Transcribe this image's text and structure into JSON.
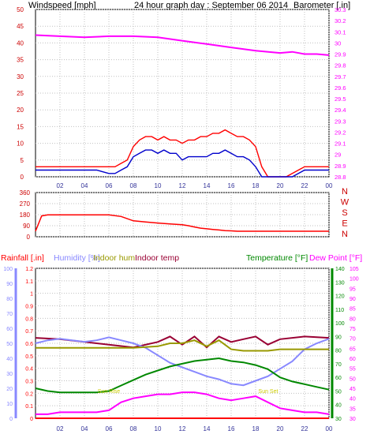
{
  "colors": {
    "wind": "#ff0000",
    "gust": "#ff0000",
    "avg": "#0000cc",
    "baro": "#ff00ff",
    "dir": "#ff0000",
    "humidity": "#8888ff",
    "indoor_hum": "#999900",
    "indoor_temp": "#990033",
    "temp": "#008800",
    "dew": "#ff00ff",
    "rain": "#ff0000",
    "grid": "#c0c0c0",
    "axis": "#000000",
    "sunrise": "#cccc00"
  },
  "chart_data": [
    {
      "type": "line",
      "title": "24 hour graph day : September 06 2014",
      "ylabel_left": "Windspeed [mph]",
      "ylabel_right": "Barometer [.in]",
      "ylim_left": [
        0,
        50
      ],
      "ylim_right": [
        28.8,
        30.3
      ],
      "xlim": [
        0,
        24
      ],
      "yticks_left": [
        "0",
        "5",
        "10",
        "15",
        "20",
        "25",
        "30",
        "35",
        "40",
        "45",
        "50"
      ],
      "yticks_right": [
        "28.8",
        "28.9",
        "29",
        "29.1",
        "29.2",
        "29.3",
        "29.4",
        "29.5",
        "29.6",
        "29.7",
        "29.8",
        "29.9",
        "30",
        "30.1",
        "30.2",
        "30.3"
      ],
      "grid": true,
      "series": [
        {
          "key": "gust",
          "x": [
            0,
            1,
            2,
            3,
            4,
            5,
            6,
            6.5,
            7,
            7.5,
            8,
            8.5,
            9,
            9.5,
            10,
            10.5,
            11,
            11.5,
            12,
            12.5,
            13,
            13.5,
            14,
            14.5,
            15,
            15.5,
            16,
            16.5,
            17,
            17.5,
            18,
            18.5,
            19,
            19.5,
            20,
            20.5,
            21,
            21.5,
            22,
            22.5,
            23,
            23.5,
            24
          ],
          "y": [
            3,
            3,
            3,
            3,
            3,
            3,
            3,
            3,
            4,
            5,
            9,
            11,
            12,
            12,
            11,
            12,
            11,
            11,
            10,
            11,
            11,
            12,
            12,
            13,
            13,
            14,
            13,
            12,
            12,
            11,
            9,
            3,
            0,
            0,
            0,
            0,
            1,
            2,
            3,
            3,
            3,
            3,
            3
          ]
        },
        {
          "key": "avg",
          "x": [
            0,
            1,
            2,
            3,
            4,
            5,
            6,
            6.5,
            7,
            7.5,
            8,
            8.5,
            9,
            9.5,
            10,
            10.5,
            11,
            11.5,
            12,
            12.5,
            13,
            13.5,
            14,
            14.5,
            15,
            15.5,
            16,
            16.5,
            17,
            17.5,
            18,
            18.5,
            19,
            19.5,
            20,
            20.5,
            21,
            21.5,
            22,
            22.5,
            23,
            23.5,
            24
          ],
          "y": [
            2,
            2,
            2,
            2,
            2,
            2,
            1,
            1,
            2,
            3,
            6,
            7,
            8,
            8,
            7,
            8,
            7,
            7,
            5,
            6,
            6,
            6,
            6,
            7,
            7,
            8,
            7,
            6,
            6,
            5,
            3,
            0,
            0,
            0,
            0,
            0,
            0,
            1,
            2,
            2,
            2,
            2,
            2
          ]
        },
        {
          "key": "baro",
          "x": [
            0,
            2,
            4,
            6,
            8,
            10,
            12,
            14,
            16,
            18,
            20,
            21,
            22,
            23,
            24
          ],
          "y": [
            30.07,
            30.06,
            30.05,
            30.06,
            30.06,
            30.05,
            30.02,
            29.99,
            29.96,
            29.93,
            29.91,
            29.92,
            29.9,
            29.9,
            29.89
          ]
        }
      ]
    },
    {
      "type": "line",
      "ylabel_left": "",
      "ylabel_right": "N W S E N",
      "ylim": [
        0,
        360
      ],
      "yticks_left": [
        "0",
        "90",
        "180",
        "270",
        "360"
      ],
      "yticks_right": [
        "N",
        "W",
        "S",
        "E",
        "N"
      ],
      "series": [
        {
          "key": "dir",
          "x": [
            0,
            0.5,
            1,
            2,
            4,
            6,
            7,
            8,
            9,
            10,
            11,
            12,
            12.5,
            13,
            13.5,
            14,
            14.5,
            15,
            15.5,
            16,
            16.5,
            17,
            17.5,
            18,
            18.5,
            19,
            20,
            22,
            24
          ],
          "y": [
            45,
            170,
            178,
            178,
            178,
            178,
            165,
            130,
            120,
            112,
            105,
            98,
            90,
            80,
            70,
            65,
            60,
            55,
            50,
            48,
            45,
            45,
            45,
            45,
            45,
            45,
            45,
            45,
            45
          ]
        }
      ]
    },
    {
      "type": "line",
      "legend": [
        "Rainfall [.in]",
        "Humidity [%]",
        "Indoor hum",
        "Indoor temp",
        "Temperature [°F]",
        "Dew Point [°F]"
      ],
      "ylabel_rain": "Rainfall [.in]",
      "ylim_rain": [
        0,
        1.2
      ],
      "yticks_rain": [
        "0",
        "0.1",
        "0.2",
        "0.3",
        "0.4",
        "0.5",
        "0.6",
        "0.7",
        "0.8",
        "0.9",
        "1",
        "1.1",
        "1.2"
      ],
      "ylim_hum": [
        0,
        100
      ],
      "yticks_hum": [
        "0",
        "10",
        "20",
        "30",
        "40",
        "50",
        "60",
        "70",
        "80",
        "90",
        "100"
      ],
      "ylim_temp": [
        30,
        140
      ],
      "yticks_temp": [
        "30",
        "40",
        "50",
        "60",
        "70",
        "80",
        "90",
        "100",
        "110",
        "120",
        "130",
        "140"
      ],
      "ylim_dew": [
        30,
        105
      ],
      "yticks_dew": [
        "30",
        "35",
        "40",
        "45",
        "50",
        "55",
        "60",
        "65",
        "70",
        "75",
        "80",
        "85",
        "90",
        "95",
        "100",
        "105"
      ],
      "xticks": [
        "02",
        "04",
        "06",
        "08",
        "10",
        "12",
        "14",
        "16",
        "18",
        "20",
        "22",
        "00"
      ],
      "annotations": [
        "Sun Rise",
        "Sun Set"
      ],
      "series": [
        {
          "key": "indoor_temp",
          "axis": "temp",
          "x": [
            0,
            2,
            4,
            6,
            8,
            10,
            11,
            12,
            13,
            14,
            15,
            16,
            17,
            18,
            19,
            20,
            22,
            24
          ],
          "y": [
            89,
            88,
            86,
            84,
            82,
            86,
            90,
            84,
            90,
            82,
            90,
            86,
            88,
            90,
            84,
            88,
            90,
            89
          ]
        },
        {
          "key": "humidity",
          "axis": "hum",
          "x": [
            0,
            1,
            2,
            3,
            4,
            5,
            6,
            7,
            8,
            9,
            10,
            11,
            12,
            13,
            14,
            15,
            16,
            17,
            18,
            19,
            20,
            21,
            22,
            23,
            24
          ],
          "y": [
            50,
            52,
            53,
            52,
            51,
            52,
            54,
            52,
            50,
            47,
            42,
            37,
            34,
            31,
            28,
            26,
            23,
            22,
            25,
            28,
            33,
            38,
            46,
            50,
            53
          ]
        },
        {
          "key": "indoor_hum",
          "axis": "hum",
          "x": [
            0,
            2,
            4,
            6,
            8,
            10,
            11,
            12,
            13,
            14,
            15,
            16,
            17,
            18,
            19,
            20,
            22,
            24
          ],
          "y": [
            47,
            47,
            47,
            47,
            47,
            48,
            50,
            50,
            52,
            48,
            52,
            46,
            45,
            45,
            45,
            46,
            46,
            46
          ]
        },
        {
          "key": "temp",
          "axis": "temp",
          "x": [
            0,
            1,
            2,
            3,
            4,
            5,
            6,
            7,
            8,
            9,
            10,
            11,
            12,
            13,
            14,
            15,
            16,
            17,
            18,
            19,
            20,
            21,
            22,
            23,
            24
          ],
          "y": [
            52,
            50,
            49,
            49,
            49,
            49,
            50,
            54,
            58,
            62,
            65,
            68,
            70,
            72,
            73,
            74,
            72,
            71,
            69,
            66,
            60,
            57,
            55,
            53,
            51
          ]
        },
        {
          "key": "dew",
          "axis": "dew",
          "x": [
            0,
            1,
            2,
            3,
            4,
            5,
            6,
            7,
            8,
            9,
            10,
            11,
            12,
            13,
            14,
            15,
            16,
            17,
            18,
            19,
            20,
            21,
            22,
            23,
            24
          ],
          "y": [
            32,
            32,
            33,
            33,
            33,
            33,
            34,
            38,
            40,
            41,
            42,
            42,
            43,
            43,
            42,
            40,
            39,
            40,
            41,
            38,
            35,
            34,
            33,
            33,
            32
          ]
        },
        {
          "key": "rain",
          "axis": "rain",
          "x": [
            0,
            24
          ],
          "y": [
            0,
            0
          ]
        }
      ]
    }
  ]
}
